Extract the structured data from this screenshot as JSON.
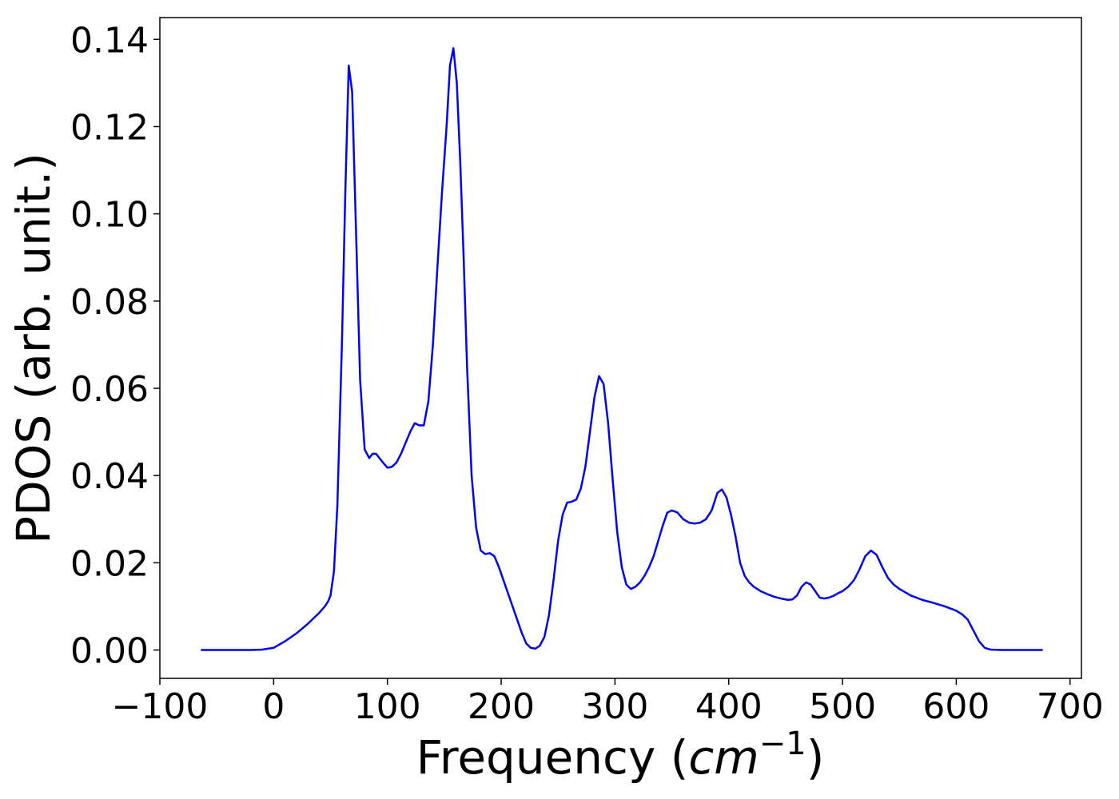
{
  "chart_data": {
    "type": "line",
    "title": "",
    "xlabel": "Frequency (",
    "xlabel_math": "cm",
    "xlabel_sup": "−1",
    "xlabel_close": ")",
    "ylabel": "PDOS (arb. unit.)",
    "xlim": [
      -100,
      710
    ],
    "ylim": [
      -0.0065,
      0.145
    ],
    "grid": false,
    "legend": "none",
    "line_color": "#0000ff",
    "x_ticks": [
      {
        "value": -100,
        "label": "−100"
      },
      {
        "value": 0,
        "label": "0"
      },
      {
        "value": 100,
        "label": "100"
      },
      {
        "value": 200,
        "label": "200"
      },
      {
        "value": 300,
        "label": "300"
      },
      {
        "value": 400,
        "label": "400"
      },
      {
        "value": 500,
        "label": "500"
      },
      {
        "value": 600,
        "label": "600"
      },
      {
        "value": 700,
        "label": "700"
      }
    ],
    "y_ticks": [
      {
        "value": 0.0,
        "label": "0.00"
      },
      {
        "value": 0.02,
        "label": "0.02"
      },
      {
        "value": 0.04,
        "label": "0.04"
      },
      {
        "value": 0.06,
        "label": "0.06"
      },
      {
        "value": 0.08,
        "label": "0.08"
      },
      {
        "value": 0.1,
        "label": "0.10"
      },
      {
        "value": 0.12,
        "label": "0.12"
      },
      {
        "value": 0.14,
        "label": "0.14"
      }
    ],
    "series": [
      {
        "x": [
          -64,
          -40,
          -20,
          -10,
          0,
          10,
          20,
          30,
          40,
          45,
          48,
          50,
          53,
          56,
          60,
          63,
          66,
          69,
          72,
          76,
          80,
          84,
          87,
          90,
          93,
          96,
          100,
          104,
          108,
          112,
          116,
          120,
          124,
          128,
          132,
          136,
          140,
          144,
          148,
          152,
          155,
          158,
          161,
          164,
          167,
          170,
          174,
          178,
          182,
          186,
          190,
          194,
          198,
          202,
          206,
          210,
          214,
          218,
          222,
          226,
          230,
          234,
          238,
          242,
          246,
          250,
          254,
          258,
          262,
          266,
          270,
          274,
          278,
          282,
          286,
          290,
          294,
          298,
          302,
          306,
          310,
          314,
          318,
          322,
          326,
          330,
          334,
          338,
          342,
          346,
          350,
          355,
          360,
          365,
          370,
          375,
          380,
          385,
          390,
          394,
          398,
          402,
          406,
          410,
          414,
          418,
          422,
          428,
          434,
          440,
          446,
          452,
          456,
          460,
          464,
          468,
          472,
          476,
          480,
          484,
          488,
          492,
          496,
          500,
          505,
          510,
          515,
          520,
          525,
          530,
          535,
          540,
          545,
          550,
          560,
          570,
          580,
          590,
          600,
          605,
          610,
          615,
          620,
          625,
          630,
          640,
          660,
          676
        ],
        "y": [
          0.0,
          0.0,
          0.0,
          0.0001,
          0.0005,
          0.002,
          0.0038,
          0.006,
          0.0085,
          0.01,
          0.0112,
          0.0125,
          0.018,
          0.033,
          0.07,
          0.105,
          0.134,
          0.128,
          0.1,
          0.062,
          0.046,
          0.044,
          0.045,
          0.045,
          0.044,
          0.043,
          0.0418,
          0.042,
          0.043,
          0.045,
          0.0475,
          0.05,
          0.052,
          0.0515,
          0.0515,
          0.057,
          0.07,
          0.088,
          0.105,
          0.12,
          0.134,
          0.138,
          0.13,
          0.112,
          0.09,
          0.065,
          0.04,
          0.028,
          0.0228,
          0.022,
          0.0222,
          0.0215,
          0.019,
          0.016,
          0.013,
          0.01,
          0.007,
          0.004,
          0.0015,
          0.0005,
          0.0003,
          0.001,
          0.003,
          0.008,
          0.016,
          0.025,
          0.031,
          0.0338,
          0.034,
          0.0345,
          0.037,
          0.042,
          0.05,
          0.058,
          0.0628,
          0.061,
          0.052,
          0.039,
          0.027,
          0.019,
          0.015,
          0.014,
          0.0145,
          0.0155,
          0.017,
          0.019,
          0.0215,
          0.025,
          0.0285,
          0.0315,
          0.032,
          0.0315,
          0.03,
          0.0292,
          0.029,
          0.0292,
          0.03,
          0.032,
          0.036,
          0.0368,
          0.035,
          0.031,
          0.026,
          0.02,
          0.017,
          0.0155,
          0.0145,
          0.0135,
          0.0128,
          0.0122,
          0.0118,
          0.0115,
          0.0116,
          0.0125,
          0.0145,
          0.0155,
          0.015,
          0.0135,
          0.012,
          0.0118,
          0.012,
          0.0124,
          0.013,
          0.0135,
          0.0145,
          0.016,
          0.0185,
          0.0215,
          0.0228,
          0.0218,
          0.019,
          0.0165,
          0.015,
          0.014,
          0.0125,
          0.0115,
          0.0108,
          0.01,
          0.009,
          0.0082,
          0.007,
          0.0045,
          0.002,
          0.0005,
          0.0001,
          0.0,
          0.0,
          0.0
        ]
      }
    ]
  }
}
